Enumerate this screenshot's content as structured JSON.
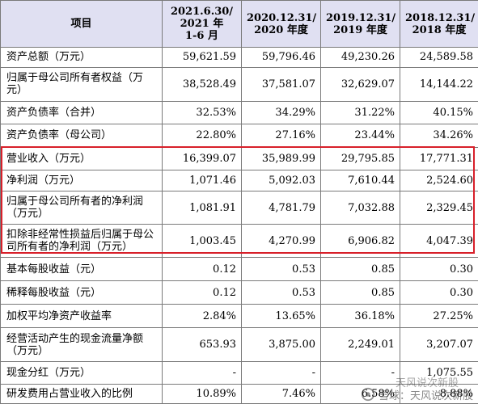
{
  "table": {
    "headers": [
      "项目",
      "2021.6.30/\n2021 年\n1-6 月",
      "2020.12.31/\n2020 年度",
      "2019.12.31/\n2019 年度",
      "2018.12.31/\n2018 年度"
    ],
    "rows": [
      {
        "label": "资产总额（万元）",
        "values": [
          "59,621.59",
          "59,796.46",
          "49,230.26",
          "24,589.58"
        ]
      },
      {
        "label": "归属于母公司所有者权益（万元）",
        "values": [
          "38,528.49",
          "37,581.07",
          "32,629.07",
          "14,144.22"
        ]
      },
      {
        "label": "资产负债率（合并）",
        "values": [
          "32.53%",
          "34.29%",
          "31.22%",
          "40.15%"
        ]
      },
      {
        "label": "资产负债率（母公司）",
        "values": [
          "22.80%",
          "27.16%",
          "23.44%",
          "34.26%"
        ]
      },
      {
        "label": "营业收入（万元）",
        "values": [
          "16,399.07",
          "35,989.99",
          "29,795.85",
          "17,771.31"
        ]
      },
      {
        "label": "净利润（万元）",
        "values": [
          "1,071.46",
          "5,092.03",
          "7,610.44",
          "2,524.60"
        ]
      },
      {
        "label": "归属于母公司所有者的净利润（万元）",
        "values": [
          "1,081.91",
          "4,781.79",
          "7,032.88",
          "2,329.45"
        ]
      },
      {
        "label": "扣除非经常性损益后归属于母公司所有者的净利润（万元）",
        "values": [
          "1,003.45",
          "4,270.99",
          "6,906.82",
          "4,047.39"
        ]
      },
      {
        "label": "基本每股收益（元）",
        "values": [
          "0.12",
          "0.53",
          "0.85",
          "0.30"
        ]
      },
      {
        "label": "稀释每股收益（元）",
        "values": [
          "0.12",
          "0.53",
          "0.85",
          "0.30"
        ]
      },
      {
        "label": "加权平均净资产收益率",
        "values": [
          "2.84%",
          "13.65%",
          "36.18%",
          "27.25%"
        ]
      },
      {
        "label": "经营活动产生的现金流量净额（万元）",
        "values": [
          "653.93",
          "3,875.00",
          "2,249.01",
          "3,207.07"
        ]
      },
      {
        "label": "现金分红（万元）",
        "values": [
          "-",
          "-",
          "-",
          "1,075.55"
        ]
      },
      {
        "label": "研发费用占营业收入的比例",
        "values": [
          "10.89%",
          "7.46%",
          "6.58%",
          "8.88%"
        ]
      }
    ]
  },
  "watermark": {
    "text": "雪球：天风说次新股",
    "text2": "天风说次新股"
  },
  "colors": {
    "header_bg": "#e0e0f2",
    "highlight_border": "#d8202a"
  }
}
